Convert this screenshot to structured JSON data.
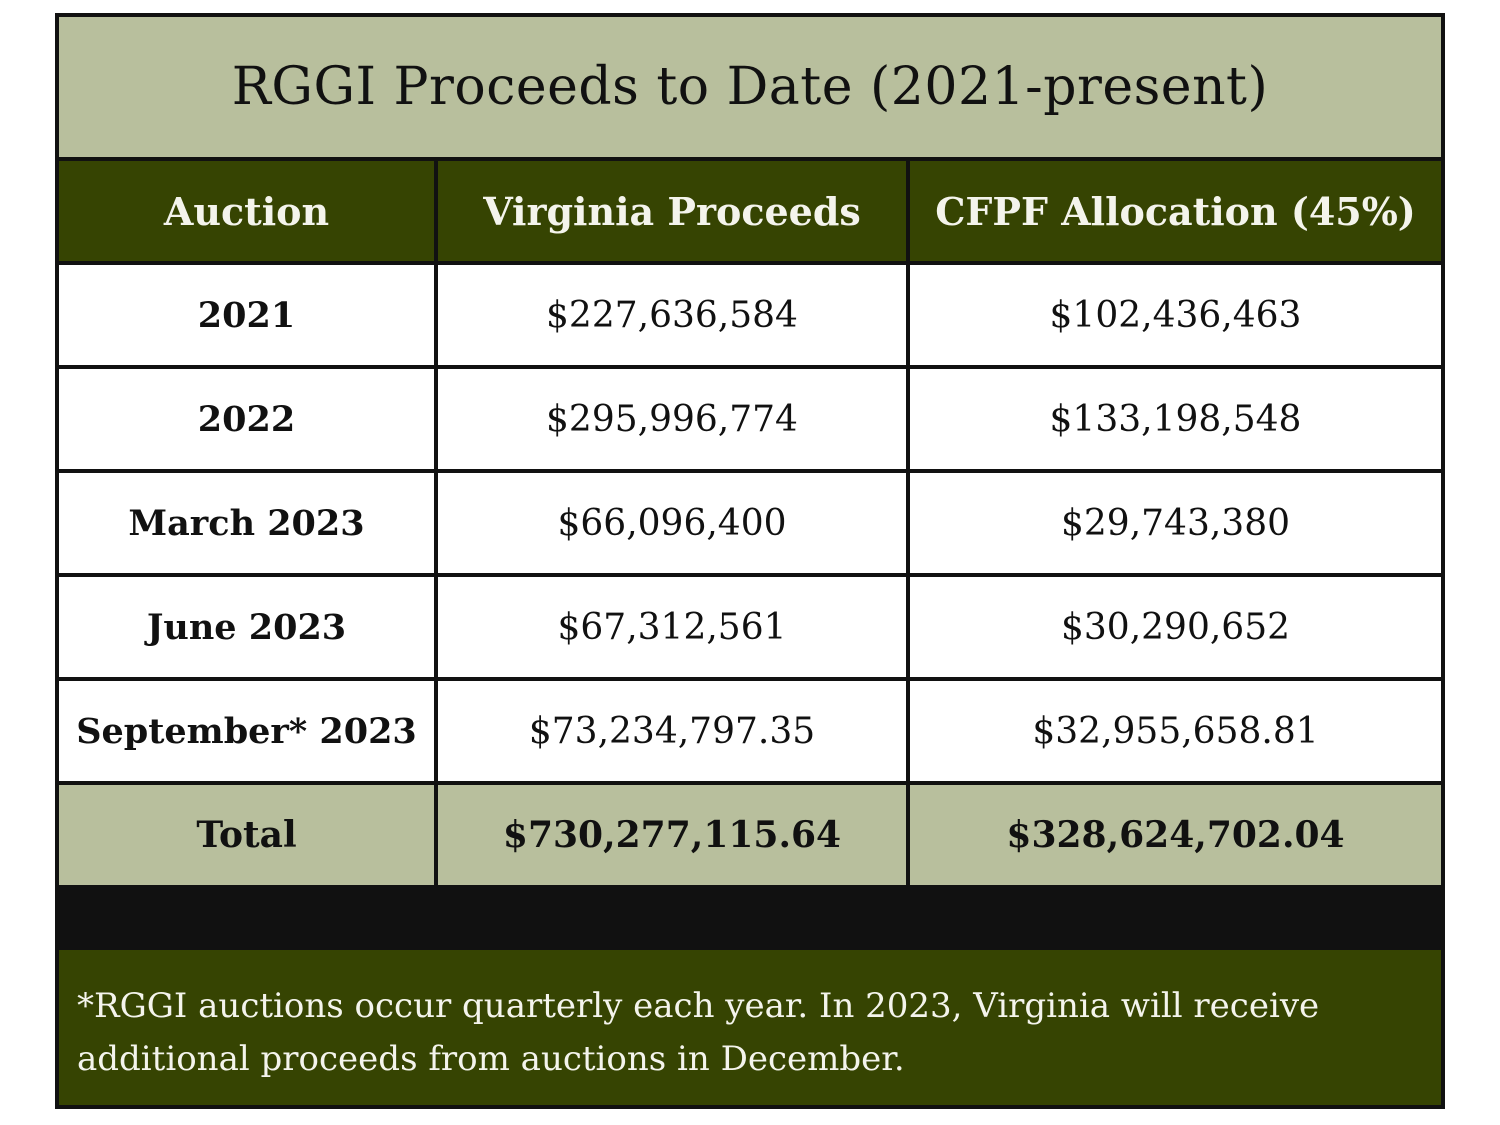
{
  "title": "RGGI Proceeds to Date (2021-present)",
  "table": {
    "headers": [
      "Auction",
      "Virginia Proceeds",
      "CFPF Allocation (45%)"
    ],
    "rows": [
      {
        "auction": "2021",
        "virginia": "$227,636,584",
        "cfpf": "$102,436,463"
      },
      {
        "auction": "2022",
        "virginia": "$295,996,774",
        "cfpf": "$133,198,548"
      },
      {
        "auction": "March 2023",
        "virginia": "$66,096,400",
        "cfpf": "$29,743,380"
      },
      {
        "auction": "June 2023",
        "virginia": "$67,312,561",
        "cfpf": "$30,290,652"
      },
      {
        "auction": "September* 2023",
        "virginia": "$73,234,797.35",
        "cfpf": "$32,955,658.81"
      }
    ],
    "total": {
      "label": "Total",
      "virginia": "$730,277,115.64",
      "cfpf": "$328,624,702.04"
    }
  },
  "footnote": "*RGGI auctions occur quarterly each year. In 2023, Virginia will receive additional proceeds from auctions in December.",
  "colors": {
    "header_green": "#364402",
    "sage": "#b8bf9d",
    "border": "#111111"
  }
}
